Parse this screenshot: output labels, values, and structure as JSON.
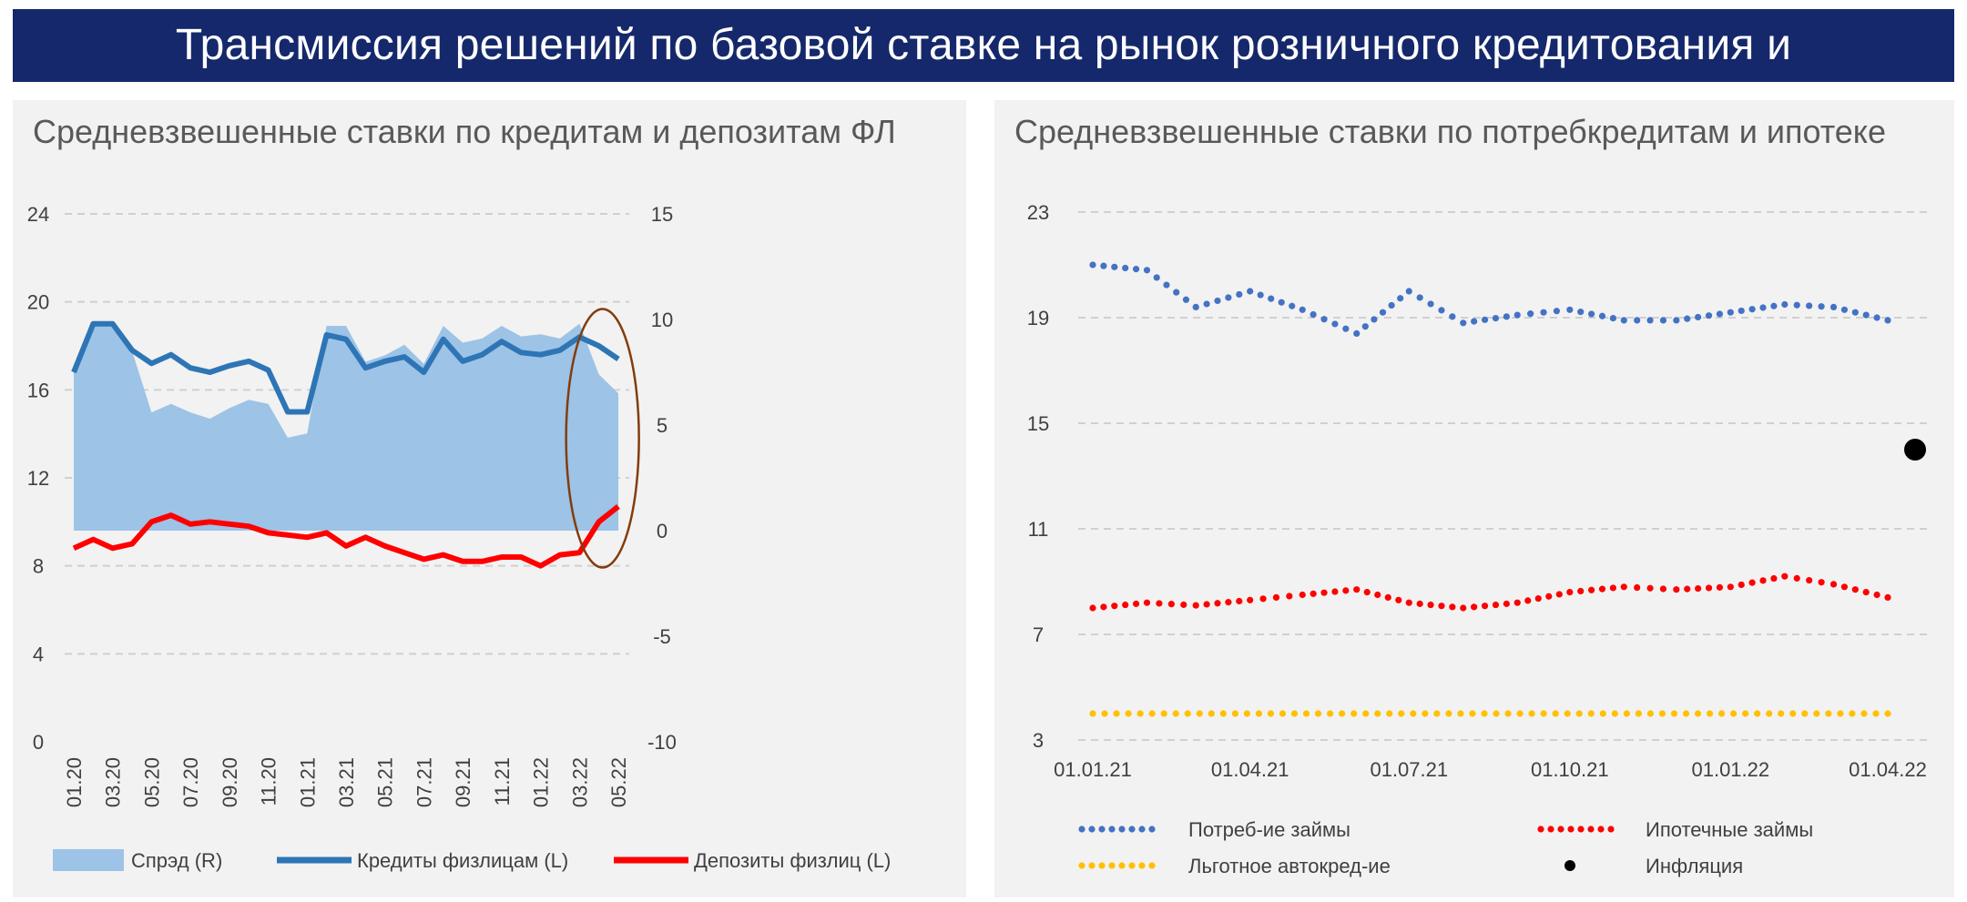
{
  "header": {
    "title": "Трансмиссия решений по базовой ставке на рынок розничного кредитования и фондирования*"
  },
  "chart_data": [
    {
      "type": "line",
      "title": "Средневзвешенные ставки по кредитам и депозитам ФЛ",
      "categories": [
        "01.20",
        "02.20",
        "03.20",
        "04.20",
        "05.20",
        "06.20",
        "07.20",
        "08.20",
        "09.20",
        "10.20",
        "11.20",
        "12.20",
        "01.21",
        "02.21",
        "03.21",
        "04.21",
        "05.21",
        "06.21",
        "07.21",
        "08.21",
        "09.21",
        "10.21",
        "11.21",
        "12.21",
        "01.22",
        "02.22",
        "03.22",
        "04.22",
        "05.22"
      ],
      "x_tick_labels": [
        "01.20",
        "03.20",
        "05.20",
        "07.20",
        "09.20",
        "11.20",
        "01.21",
        "03.21",
        "05.21",
        "07.21",
        "09.21",
        "11.21",
        "01.22",
        "03.22",
        "05.22"
      ],
      "left_axis": {
        "ylim": [
          0,
          24
        ],
        "ticks": [
          "0",
          "4",
          "8",
          "12",
          "16",
          "20",
          "24"
        ]
      },
      "right_axis": {
        "ylim": [
          -10,
          15
        ],
        "ticks": [
          "-10",
          "-5",
          "0",
          "5",
          "10",
          "15"
        ]
      },
      "series": [
        {
          "name": "Спрэд (R)",
          "type": "area",
          "axis": "right",
          "color": "#9dc3e6",
          "values": [
            7.6,
            9.9,
            9.8,
            8.5,
            5.6,
            6.0,
            5.6,
            5.3,
            5.8,
            6.2,
            6.0,
            4.4,
            4.6,
            9.7,
            9.7,
            8.0,
            8.3,
            8.8,
            7.9,
            9.7,
            8.9,
            9.1,
            9.7,
            9.2,
            9.3,
            9.1,
            9.8,
            7.4,
            6.5
          ]
        },
        {
          "name": "Кредиты физлицам (L)",
          "type": "line",
          "axis": "left",
          "color": "#2e75b6",
          "values": [
            16.8,
            19.0,
            19.0,
            17.8,
            17.2,
            17.6,
            17.0,
            16.8,
            17.1,
            17.3,
            16.9,
            15.0,
            15.0,
            18.5,
            18.3,
            17.0,
            17.3,
            17.5,
            16.8,
            18.3,
            17.3,
            17.6,
            18.2,
            17.7,
            17.6,
            17.8,
            18.4,
            18.0,
            17.4
          ]
        },
        {
          "name": "Депозиты физлиц (L)",
          "type": "line",
          "axis": "left",
          "color": "#ff0000",
          "values": [
            8.8,
            9.2,
            8.8,
            9.0,
            10.0,
            10.3,
            9.9,
            10.0,
            9.9,
            9.8,
            9.5,
            9.4,
            9.3,
            9.5,
            8.9,
            9.3,
            8.9,
            8.6,
            8.3,
            8.5,
            8.2,
            8.2,
            8.4,
            8.4,
            8.0,
            8.5,
            8.6,
            10.0,
            10.7
          ]
        }
      ],
      "legend": {
        "placement": "bottom"
      },
      "annotation": {
        "shape": "ellipse",
        "color": "#843c0c",
        "highlights": "03.22–05.22"
      }
    },
    {
      "type": "line",
      "title": "Средневзвешенные ставки по потребкредитам и ипотеке",
      "x_tick_labels": [
        "01.01.21",
        "01.04.21",
        "01.07.21",
        "01.10.21",
        "01.01.22",
        "01.04.22"
      ],
      "x_range": [
        "01.01.21",
        "01.04.22"
      ],
      "y_axis": {
        "ylim": [
          3,
          23
        ],
        "ticks": [
          "3",
          "7",
          "11",
          "15",
          "19",
          "23"
        ]
      },
      "grid": true,
      "series": [
        {
          "name": "Потреб-ие займы",
          "style": "dotted",
          "color": "#4472c4",
          "points": [
            [
              "01.01.21",
              21.0
            ],
            [
              "01.02.21",
              20.8
            ],
            [
              "01.03.21",
              19.4
            ],
            [
              "01.04.21",
              20.0
            ],
            [
              "01.05.21",
              19.3
            ],
            [
              "01.06.21",
              18.4
            ],
            [
              "01.07.21",
              20.0
            ],
            [
              "01.08.21",
              18.8
            ],
            [
              "01.09.21",
              19.1
            ],
            [
              "01.10.21",
              19.3
            ],
            [
              "01.11.21",
              18.9
            ],
            [
              "01.12.21",
              18.9
            ],
            [
              "01.01.22",
              19.2
            ],
            [
              "01.02.22",
              19.5
            ],
            [
              "01.03.22",
              19.4
            ],
            [
              "01.04.22",
              18.9
            ]
          ]
        },
        {
          "name": "Ипотечные займы",
          "style": "dotted",
          "color": "#ff0000",
          "points": [
            [
              "01.01.21",
              8.0
            ],
            [
              "01.02.21",
              8.2
            ],
            [
              "01.03.21",
              8.1
            ],
            [
              "01.04.21",
              8.3
            ],
            [
              "01.05.21",
              8.5
            ],
            [
              "01.06.21",
              8.7
            ],
            [
              "01.07.21",
              8.2
            ],
            [
              "01.08.21",
              8.0
            ],
            [
              "01.09.21",
              8.2
            ],
            [
              "01.10.21",
              8.6
            ],
            [
              "01.11.21",
              8.8
            ],
            [
              "01.12.21",
              8.7
            ],
            [
              "01.01.22",
              8.8
            ],
            [
              "01.02.22",
              9.2
            ],
            [
              "01.03.22",
              8.9
            ],
            [
              "01.04.22",
              8.4
            ]
          ]
        },
        {
          "name": "Льготное автокред-ие",
          "style": "dotted",
          "color": "#ffc000",
          "points": [
            [
              "01.01.21",
              4.0
            ],
            [
              "01.04.22",
              4.0
            ]
          ]
        },
        {
          "name": "Инфляция",
          "style": "marker",
          "color": "#000000",
          "points": [
            [
              "01.04.22",
              14.0
            ]
          ]
        }
      ],
      "legend": {
        "placement": "bottom"
      }
    }
  ]
}
